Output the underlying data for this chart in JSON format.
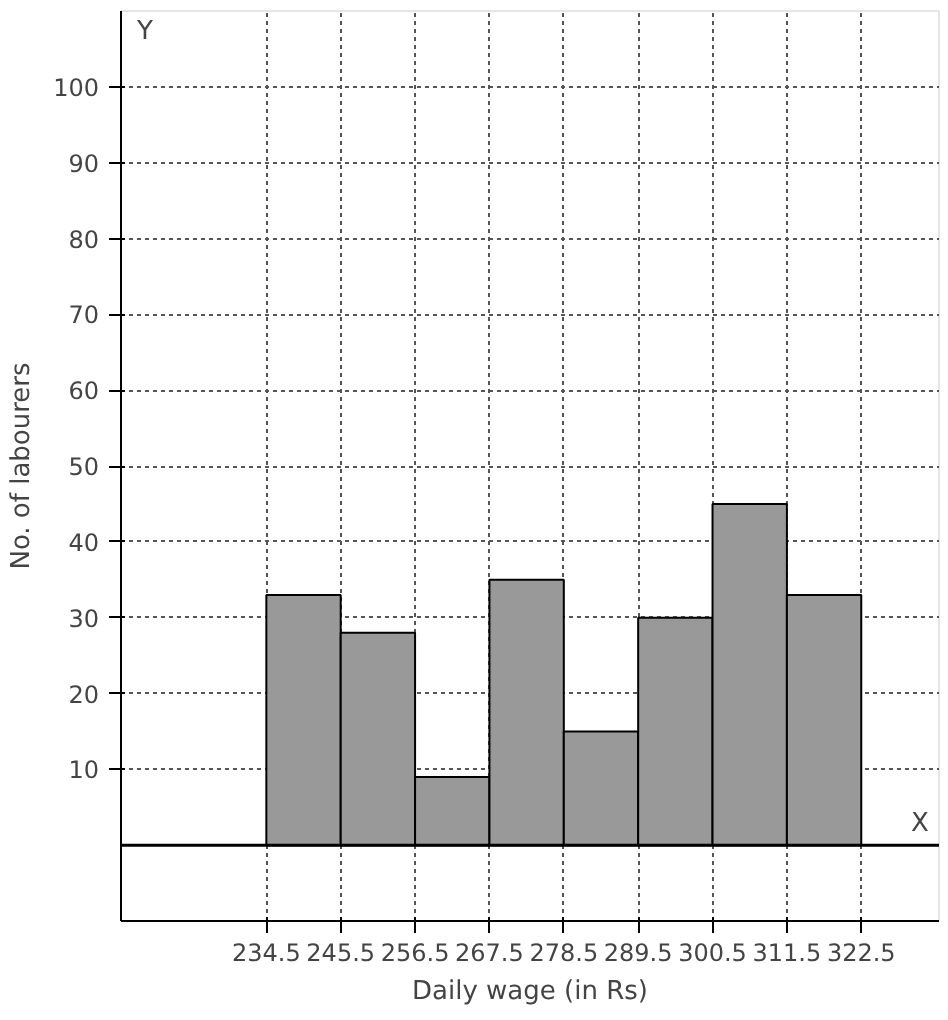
{
  "chart_data": {
    "type": "histogram",
    "xlabel": "Daily wage (in Rs)",
    "ylabel": "No. of labourers",
    "bins": [
      234.5,
      245.5,
      256.5,
      267.5,
      278.5,
      289.5,
      300.5,
      311.5,
      322.5
    ],
    "values": [
      33,
      28,
      9,
      35,
      15,
      30,
      45,
      33
    ],
    "color": "#999999",
    "xlim": [
      213,
      334
    ],
    "xticks": [
      234.5,
      245.5,
      256.5,
      267.5,
      278.5,
      289.5,
      300.5,
      311.5,
      322.5
    ],
    "ylim": [
      -10,
      110
    ],
    "yticks": [
      10,
      20,
      30,
      40,
      50,
      60,
      70,
      80,
      90,
      100
    ],
    "grid": true,
    "annotations": [
      "X",
      "Y"
    ]
  }
}
